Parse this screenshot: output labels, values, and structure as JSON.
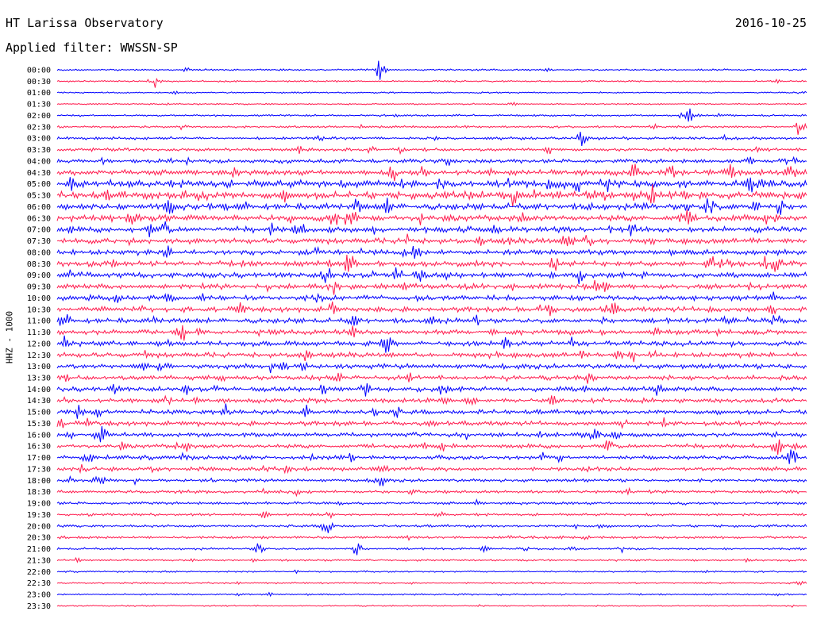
{
  "header": {
    "title": "HT Larissa Observatory",
    "date": "2016-10-25",
    "filter": "Applied filter: WWSSN-SP"
  },
  "chart_data": {
    "type": "line",
    "title": "HT Larissa Observatory",
    "subtitle": "Applied filter: WWSSN-SP",
    "ylabel": "HHZ - 1000",
    "date": "2016-10-25",
    "colors": [
      "#0000ff",
      "#ff1a4d"
    ],
    "row_labels": [
      "00:00",
      "00:30",
      "01:00",
      "01:30",
      "02:00",
      "02:30",
      "03:00",
      "03:30",
      "04:00",
      "04:30",
      "05:00",
      "05:30",
      "06:00",
      "06:30",
      "07:00",
      "07:30",
      "08:00",
      "08:30",
      "09:00",
      "09:30",
      "10:00",
      "10:30",
      "11:00",
      "11:30",
      "12:00",
      "12:30",
      "13:00",
      "13:30",
      "14:00",
      "14:30",
      "15:00",
      "15:30",
      "16:00",
      "16:30",
      "17:00",
      "17:30",
      "18:00",
      "18:30",
      "19:00",
      "19:30",
      "20:00",
      "20:30",
      "21:00",
      "21:30",
      "22:00",
      "22:30",
      "23:00",
      "23:30"
    ],
    "amplitude": [
      0.3,
      0.3,
      0.25,
      0.25,
      0.35,
      0.4,
      0.5,
      0.55,
      0.7,
      1.0,
      1.3,
      1.3,
      1.1,
      1.1,
      1.0,
      1.0,
      0.95,
      0.95,
      0.95,
      0.95,
      0.9,
      0.9,
      0.9,
      0.9,
      0.9,
      0.9,
      0.85,
      0.8,
      0.85,
      0.8,
      0.8,
      0.8,
      0.75,
      0.75,
      0.75,
      0.7,
      0.55,
      0.55,
      0.5,
      0.45,
      0.45,
      0.45,
      0.4,
      0.35,
      0.3,
      0.3,
      0.3,
      0.25
    ],
    "events": [
      {
        "row": 0,
        "t": 0.43,
        "amp": 14
      },
      {
        "row": 1,
        "t": 0.13,
        "amp": 9
      },
      {
        "row": 4,
        "t": 0.84,
        "amp": 20
      },
      {
        "row": 5,
        "t": 0.99,
        "amp": 12
      },
      {
        "row": 6,
        "t": 0.7,
        "amp": 10
      },
      {
        "row": 9,
        "t": 0.45,
        "amp": 16
      },
      {
        "row": 10,
        "t": 0.02,
        "amp": 14
      },
      {
        "row": 12,
        "t": 0.87,
        "amp": 18
      },
      {
        "row": 13,
        "t": 0.37,
        "amp": 16
      },
      {
        "row": 16,
        "t": 0.48,
        "amp": 14
      },
      {
        "row": 17,
        "t": 0.39,
        "amp": 16
      },
      {
        "row": 18,
        "t": 0.36,
        "amp": 14
      },
      {
        "row": 21,
        "t": 0.74,
        "amp": 16
      },
      {
        "row": 22,
        "t": 0.01,
        "amp": 13
      },
      {
        "row": 24,
        "t": 0.44,
        "amp": 14
      },
      {
        "row": 25,
        "t": 0.33,
        "amp": 14
      },
      {
        "row": 28,
        "t": 0.41,
        "amp": 12
      },
      {
        "row": 30,
        "t": 0.03,
        "amp": 14
      },
      {
        "row": 32,
        "t": 0.06,
        "amp": 12
      },
      {
        "row": 33,
        "t": 0.96,
        "amp": 15
      },
      {
        "row": 34,
        "t": 0.04,
        "amp": 12
      },
      {
        "row": 34,
        "t": 0.98,
        "amp": 14
      },
      {
        "row": 36,
        "t": 0.43,
        "amp": 12
      },
      {
        "row": 40,
        "t": 0.36,
        "amp": 12
      },
      {
        "row": 42,
        "t": 0.27,
        "amp": 9
      },
      {
        "row": 42,
        "t": 0.4,
        "amp": 9
      }
    ],
    "grid": false,
    "legend": "none"
  }
}
